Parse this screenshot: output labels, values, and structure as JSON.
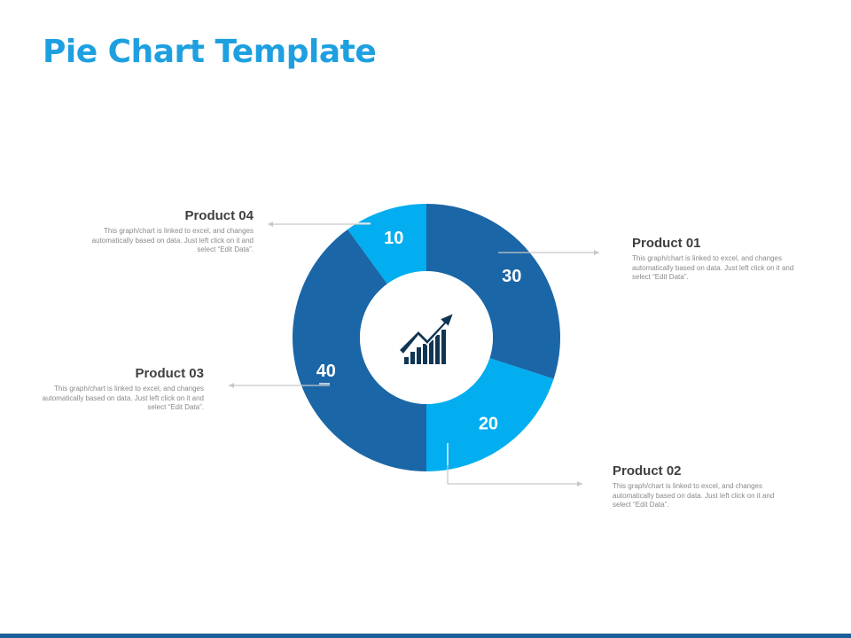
{
  "slide": {
    "title": "Pie Chart Template"
  },
  "chart_data": {
    "type": "pie",
    "style": "donut",
    "categories": [
      "Product 01",
      "Product 02",
      "Product 03",
      "Product 04"
    ],
    "values": [
      30,
      20,
      40,
      10
    ],
    "slice_labels": [
      "30",
      "20",
      "40",
      "10"
    ],
    "colors": [
      "#1b66a6",
      "#02aeef",
      "#1b66a6",
      "#02aeef"
    ],
    "center_icon": "growth-chart-arrow-icon"
  },
  "callouts": [
    {
      "id": "product01",
      "name": "Product 01",
      "text": "This graph/chart is linked to excel, and changes automatically based on data. Just left click on it and select “Edit Data”."
    },
    {
      "id": "product02",
      "name": "Product 02",
      "text": "This graph/chart is linked to excel, and changes automatically based on data. Just left click on it and select “Edit Data”."
    },
    {
      "id": "product03",
      "name": "Product 03",
      "text": "This graph/chart is linked to excel, and changes automatically based on data. Just left click on it and select “Edit Data”."
    },
    {
      "id": "product04",
      "name": "Product 04",
      "text": "This graph/chart is linked to excel, and changes automatically based on data. Just left click on it and select “Edit Data”."
    }
  ],
  "colors": {
    "title": "#1ea0e0",
    "dark_blue": "#1b66a6",
    "light_blue": "#02aeef",
    "icon": "#0f3553",
    "connector": "#c8c8c8",
    "bottom_bar": "#1d5f99"
  }
}
